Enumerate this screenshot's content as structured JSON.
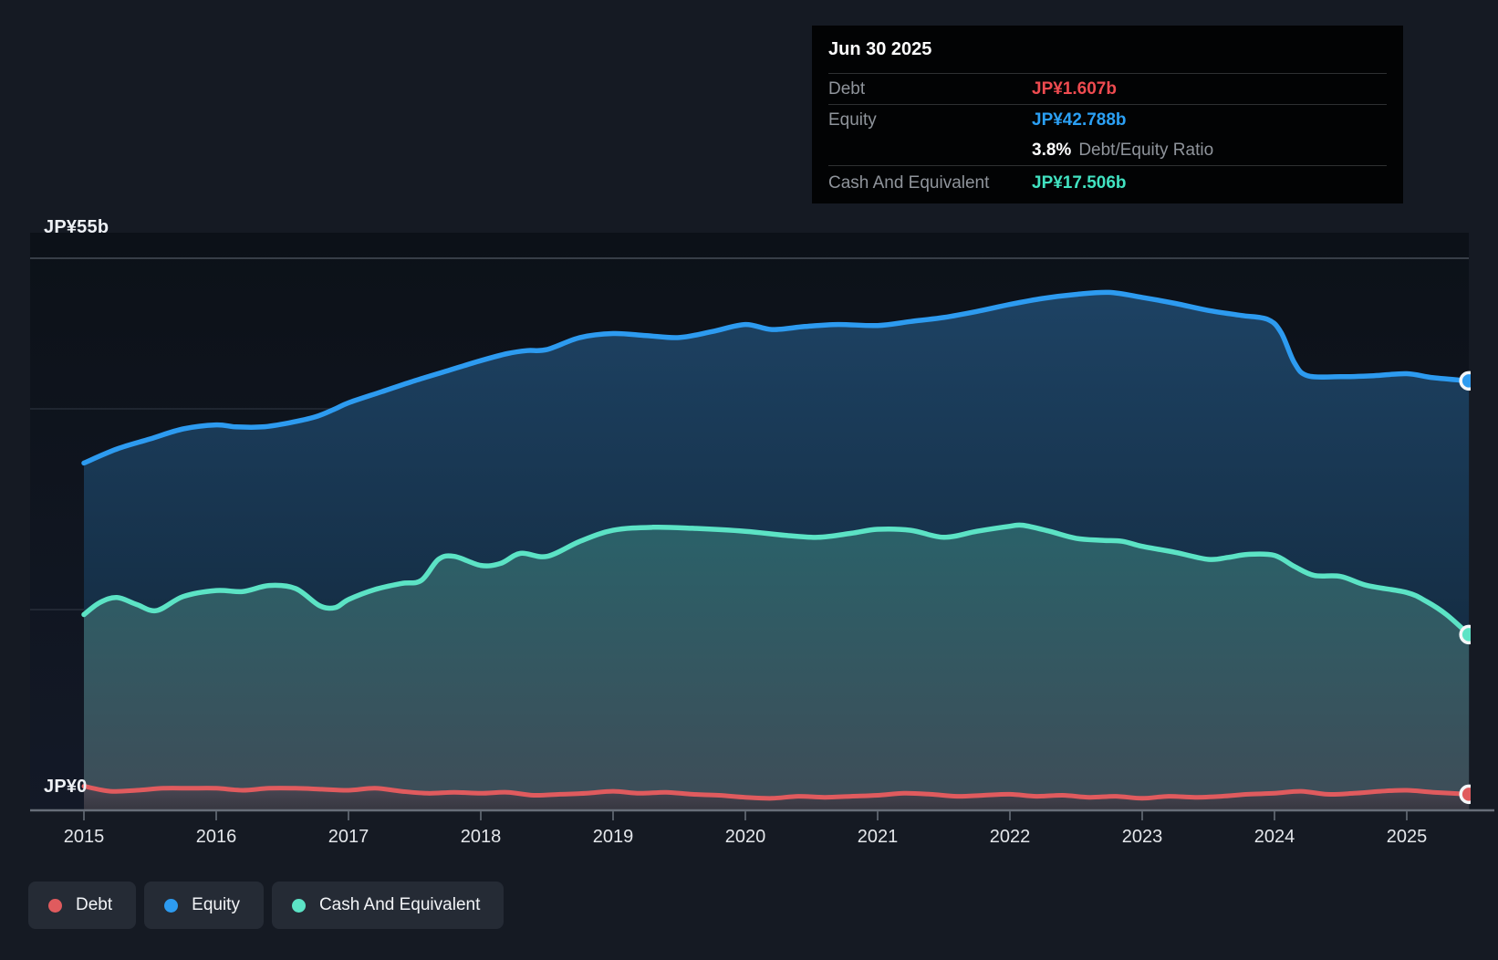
{
  "axis": {
    "y_top_label": "JP¥55b",
    "y_zero_label": "JP¥0"
  },
  "tooltip": {
    "date": "Jun 30 2025",
    "debt_label": "Debt",
    "debt_value": "JP¥1.607b",
    "equity_label": "Equity",
    "equity_value": "JP¥42.788b",
    "ratio_value": "3.8%",
    "ratio_label": "Debt/Equity Ratio",
    "cash_label": "Cash And Equivalent",
    "cash_value": "JP¥17.506b"
  },
  "legend": [
    {
      "label": "Debt",
      "color": "#e05b5e"
    },
    {
      "label": "Equity",
      "color": "#2d9bf0"
    },
    {
      "label": "Cash And Equivalent",
      "color": "#5ce3c5"
    }
  ],
  "colors": {
    "debt_line": "#e05b5e",
    "equity_line": "#2d9bf0",
    "cash_line": "#5ce3c5",
    "marker_ring": "#f4f6f8",
    "gridline": "rgba(160,175,195,0.16)",
    "gridline_top": "rgba(165,175,190,0.38)",
    "axis_line": "#676e79",
    "tick": "#565d67",
    "year_label": "#e4e7eb"
  },
  "chart_data": {
    "type": "area",
    "unit": "JP¥ billions",
    "ylim": [
      0,
      55
    ],
    "gridline_values": [
      40,
      20
    ],
    "top_gridline_value": 55,
    "x_tick_years": [
      2015,
      2016,
      2017,
      2018,
      2019,
      2020,
      2021,
      2022,
      2023,
      2024,
      2025
    ],
    "x_tick_labels": [
      "2015",
      "2016",
      "2017",
      "2018",
      "2019",
      "2020",
      "2021",
      "2022",
      "2023",
      "2024",
      "2025"
    ],
    "legend_position": "bottom-left",
    "series": [
      {
        "name": "Equity",
        "color": "#2d9bf0",
        "points": [
          [
            2015.0,
            34.6
          ],
          [
            2015.25,
            36.0
          ],
          [
            2015.5,
            37.0
          ],
          [
            2015.75,
            38.0
          ],
          [
            2016.0,
            38.4
          ],
          [
            2016.15,
            38.2
          ],
          [
            2016.35,
            38.2
          ],
          [
            2016.55,
            38.6
          ],
          [
            2016.75,
            39.2
          ],
          [
            2016.9,
            40.0
          ],
          [
            2017.0,
            40.6
          ],
          [
            2017.25,
            41.7
          ],
          [
            2017.5,
            42.8
          ],
          [
            2017.75,
            43.8
          ],
          [
            2018.0,
            44.8
          ],
          [
            2018.2,
            45.5
          ],
          [
            2018.35,
            45.8
          ],
          [
            2018.5,
            45.9
          ],
          [
            2018.75,
            47.1
          ],
          [
            2019.0,
            47.5
          ],
          [
            2019.25,
            47.3
          ],
          [
            2019.5,
            47.1
          ],
          [
            2019.75,
            47.7
          ],
          [
            2020.0,
            48.4
          ],
          [
            2020.2,
            47.9
          ],
          [
            2020.45,
            48.2
          ],
          [
            2020.7,
            48.4
          ],
          [
            2021.0,
            48.3
          ],
          [
            2021.25,
            48.7
          ],
          [
            2021.5,
            49.1
          ],
          [
            2021.75,
            49.7
          ],
          [
            2022.0,
            50.4
          ],
          [
            2022.25,
            51.0
          ],
          [
            2022.5,
            51.4
          ],
          [
            2022.75,
            51.6
          ],
          [
            2023.0,
            51.1
          ],
          [
            2023.25,
            50.5
          ],
          [
            2023.5,
            49.8
          ],
          [
            2023.75,
            49.3
          ],
          [
            2023.95,
            48.9
          ],
          [
            2024.05,
            47.6
          ],
          [
            2024.15,
            44.6
          ],
          [
            2024.25,
            43.3
          ],
          [
            2024.5,
            43.2
          ],
          [
            2024.75,
            43.3
          ],
          [
            2025.0,
            43.5
          ],
          [
            2025.2,
            43.1
          ],
          [
            2025.47,
            42.788
          ]
        ]
      },
      {
        "name": "Cash And Equivalent",
        "color": "#5ce3c5",
        "points": [
          [
            2015.0,
            19.5
          ],
          [
            2015.12,
            20.7
          ],
          [
            2015.25,
            21.2
          ],
          [
            2015.4,
            20.5
          ],
          [
            2015.55,
            19.9
          ],
          [
            2015.75,
            21.3
          ],
          [
            2016.0,
            21.9
          ],
          [
            2016.2,
            21.8
          ],
          [
            2016.4,
            22.4
          ],
          [
            2016.6,
            22.1
          ],
          [
            2016.78,
            20.4
          ],
          [
            2016.9,
            20.2
          ],
          [
            2017.0,
            21.0
          ],
          [
            2017.2,
            22.0
          ],
          [
            2017.4,
            22.6
          ],
          [
            2017.55,
            22.9
          ],
          [
            2017.68,
            25.0
          ],
          [
            2017.8,
            25.3
          ],
          [
            2018.0,
            24.4
          ],
          [
            2018.15,
            24.6
          ],
          [
            2018.3,
            25.6
          ],
          [
            2018.5,
            25.3
          ],
          [
            2018.75,
            26.8
          ],
          [
            2019.0,
            27.9
          ],
          [
            2019.3,
            28.2
          ],
          [
            2019.6,
            28.1
          ],
          [
            2020.0,
            27.8
          ],
          [
            2020.3,
            27.4
          ],
          [
            2020.55,
            27.2
          ],
          [
            2020.8,
            27.6
          ],
          [
            2021.0,
            28.0
          ],
          [
            2021.25,
            27.9
          ],
          [
            2021.5,
            27.2
          ],
          [
            2021.75,
            27.8
          ],
          [
            2022.0,
            28.3
          ],
          [
            2022.1,
            28.4
          ],
          [
            2022.3,
            27.8
          ],
          [
            2022.5,
            27.1
          ],
          [
            2022.7,
            26.9
          ],
          [
            2022.85,
            26.8
          ],
          [
            2023.0,
            26.3
          ],
          [
            2023.25,
            25.7
          ],
          [
            2023.5,
            25.0
          ],
          [
            2023.65,
            25.2
          ],
          [
            2023.8,
            25.5
          ],
          [
            2024.0,
            25.4
          ],
          [
            2024.15,
            24.3
          ],
          [
            2024.3,
            23.4
          ],
          [
            2024.5,
            23.3
          ],
          [
            2024.7,
            22.4
          ],
          [
            2025.0,
            21.7
          ],
          [
            2025.15,
            20.8
          ],
          [
            2025.3,
            19.5
          ],
          [
            2025.47,
            17.506
          ]
        ]
      },
      {
        "name": "Debt",
        "color": "#e05b5e",
        "points": [
          [
            2015.0,
            2.4
          ],
          [
            2015.2,
            1.9
          ],
          [
            2015.4,
            2.0
          ],
          [
            2015.6,
            2.2
          ],
          [
            2015.8,
            2.2
          ],
          [
            2016.0,
            2.2
          ],
          [
            2016.2,
            2.0
          ],
          [
            2016.4,
            2.2
          ],
          [
            2016.6,
            2.2
          ],
          [
            2016.8,
            2.1
          ],
          [
            2017.0,
            2.0
          ],
          [
            2017.2,
            2.2
          ],
          [
            2017.4,
            1.9
          ],
          [
            2017.6,
            1.7
          ],
          [
            2017.8,
            1.8
          ],
          [
            2018.0,
            1.7
          ],
          [
            2018.2,
            1.8
          ],
          [
            2018.4,
            1.5
          ],
          [
            2018.6,
            1.6
          ],
          [
            2018.8,
            1.7
          ],
          [
            2019.0,
            1.9
          ],
          [
            2019.2,
            1.7
          ],
          [
            2019.4,
            1.8
          ],
          [
            2019.6,
            1.6
          ],
          [
            2019.8,
            1.5
          ],
          [
            2020.0,
            1.3
          ],
          [
            2020.2,
            1.2
          ],
          [
            2020.4,
            1.4
          ],
          [
            2020.6,
            1.3
          ],
          [
            2020.8,
            1.4
          ],
          [
            2021.0,
            1.5
          ],
          [
            2021.2,
            1.7
          ],
          [
            2021.4,
            1.6
          ],
          [
            2021.6,
            1.4
          ],
          [
            2021.8,
            1.5
          ],
          [
            2022.0,
            1.6
          ],
          [
            2022.2,
            1.4
          ],
          [
            2022.4,
            1.5
          ],
          [
            2022.6,
            1.3
          ],
          [
            2022.8,
            1.4
          ],
          [
            2023.0,
            1.2
          ],
          [
            2023.2,
            1.4
          ],
          [
            2023.4,
            1.3
          ],
          [
            2023.6,
            1.4
          ],
          [
            2023.8,
            1.6
          ],
          [
            2024.0,
            1.7
          ],
          [
            2024.2,
            1.9
          ],
          [
            2024.4,
            1.6
          ],
          [
            2024.6,
            1.7
          ],
          [
            2024.8,
            1.9
          ],
          [
            2025.0,
            2.0
          ],
          [
            2025.2,
            1.8
          ],
          [
            2025.47,
            1.607
          ]
        ]
      }
    ]
  }
}
